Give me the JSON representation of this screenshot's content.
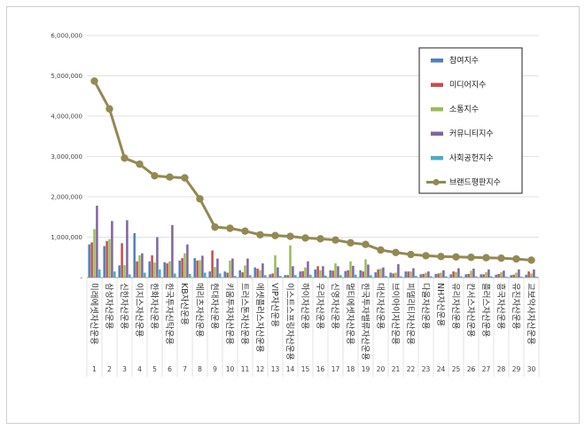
{
  "chart_data": {
    "type": "bar",
    "ylim": [
      0,
      6000000
    ],
    "yticks": [
      "-",
      "1,000,000",
      "2,000,000",
      "3,000,000",
      "4,000,000",
      "5,000,000",
      "6,000,000"
    ],
    "ytick_values": [
      0,
      1000000,
      2000000,
      3000000,
      4000000,
      5000000,
      6000000
    ],
    "legend_position": "top-right",
    "numbers": [
      "1",
      "2",
      "3",
      "4",
      "5",
      "6",
      "7",
      "8",
      "9",
      "10",
      "11",
      "12",
      "13",
      "14",
      "15",
      "16",
      "17",
      "18",
      "19",
      "20",
      "21",
      "22",
      "23",
      "24",
      "25",
      "26",
      "27",
      "28",
      "29",
      "30"
    ],
    "categories": [
      "미래에셋자산운용",
      "삼성자산운용",
      "신한자산운용",
      "이지스자산운용",
      "한화자산운용",
      "한국투자신탁운용",
      "KB자산운용",
      "메리츠자산운용",
      "현대자산운용",
      "키움투자자산운용",
      "트러스톤자산운용",
      "에셋플러스자산운용",
      "VIP자산운용",
      "이스트스프링자산운용",
      "하이자산운용",
      "우리자산운용",
      "신영자산운용",
      "멀티에셋자산운용",
      "한국투자밸류자산운용",
      "대신자산운용",
      "브이아이자산운용",
      "피델리티자산운용",
      "다올자산운용",
      "NH자산운용",
      "유리자산운용",
      "칸서스자산운용",
      "플러스자산운용",
      "흥국자산운용",
      "유진자산운용",
      "교보악사자산운용"
    ],
    "series": [
      {
        "name": "참여지수",
        "color": "#4f81bd",
        "values": [
          820000,
          780000,
          300000,
          1100000,
          400000,
          380000,
          420000,
          480000,
          150000,
          150000,
          180000,
          250000,
          80000,
          60000,
          150000,
          200000,
          180000,
          160000,
          180000,
          130000,
          120000,
          150000,
          80000,
          90000,
          80000,
          80000,
          80000,
          70000,
          60000,
          70000
        ]
      },
      {
        "name": "미디어지수",
        "color": "#c0504d",
        "values": [
          870000,
          900000,
          850000,
          400000,
          550000,
          350000,
          480000,
          420000,
          670000,
          120000,
          130000,
          220000,
          100000,
          60000,
          160000,
          280000,
          170000,
          180000,
          150000,
          200000,
          100000,
          150000,
          90000,
          100000,
          150000,
          90000,
          80000,
          90000,
          70000,
          150000
        ]
      },
      {
        "name": "소통지수",
        "color": "#9bbb59",
        "values": [
          1200000,
          950000,
          310000,
          550000,
          370000,
          400000,
          600000,
          430000,
          260000,
          420000,
          300000,
          180000,
          550000,
          800000,
          250000,
          180000,
          350000,
          400000,
          450000,
          220000,
          120000,
          150000,
          120000,
          120000,
          140000,
          170000,
          130000,
          130000,
          120000,
          100000
        ]
      },
      {
        "name": "커뮤니티지수",
        "color": "#8064a2",
        "values": [
          1780000,
          1400000,
          1420000,
          600000,
          1000000,
          1300000,
          820000,
          540000,
          470000,
          470000,
          470000,
          350000,
          250000,
          280000,
          400000,
          280000,
          280000,
          290000,
          320000,
          250000,
          330000,
          230000,
          150000,
          180000,
          230000,
          220000,
          200000,
          170000,
          200000,
          200000
        ]
      },
      {
        "name": "사회공헌지수",
        "color": "#4bacc6",
        "values": [
          200000,
          150000,
          80000,
          120000,
          200000,
          100000,
          90000,
          120000,
          100000,
          40000,
          60000,
          60000,
          40000,
          60000,
          70000,
          50000,
          60000,
          70000,
          60000,
          40000,
          30000,
          40000,
          30000,
          30000,
          30000,
          30000,
          30000,
          20000,
          20000,
          20000
        ]
      },
      {
        "name": "브랜드평판지수",
        "color": "#938953",
        "line": true,
        "values": [
          4870000,
          4180000,
          2960000,
          2810000,
          2520000,
          2490000,
          2470000,
          1950000,
          1250000,
          1220000,
          1150000,
          1060000,
          1040000,
          1020000,
          980000,
          960000,
          930000,
          860000,
          820000,
          680000,
          620000,
          570000,
          540000,
          520000,
          510000,
          500000,
          490000,
          480000,
          460000,
          430000
        ]
      }
    ]
  }
}
